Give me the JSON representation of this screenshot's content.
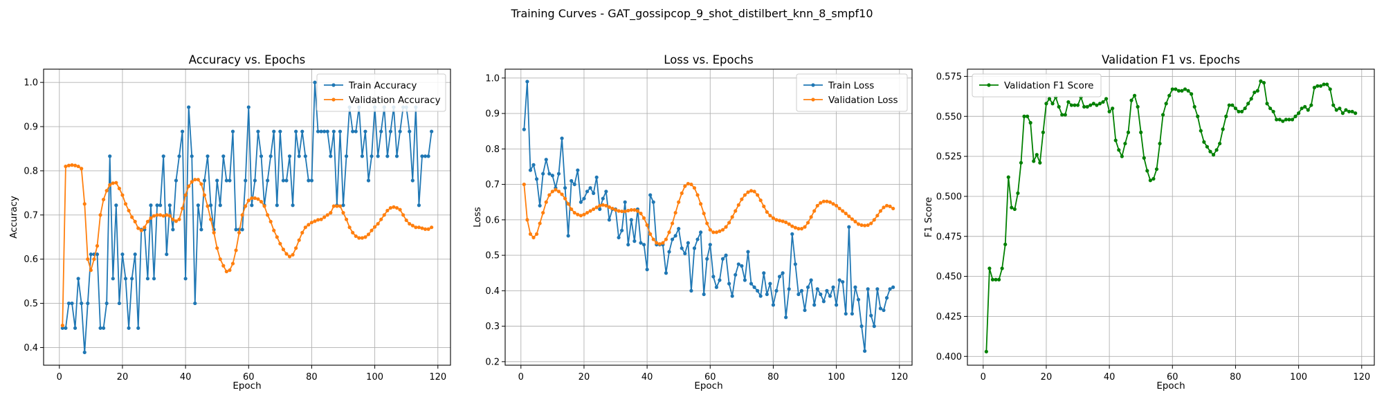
{
  "suptitle": "Training Curves - GAT_gossipcop_9_shot_distilbert_knn_8_smpf10",
  "chart_data": [
    {
      "type": "line",
      "title": "Accuracy vs. Epochs",
      "xlabel": "Epoch",
      "ylabel": "Accuracy",
      "xlim": [
        -5,
        124
      ],
      "ylim": [
        0.36,
        1.03
      ],
      "xticks": [
        0,
        20,
        40,
        60,
        80,
        100,
        120
      ],
      "yticks": [
        0.4,
        0.5,
        0.6,
        0.7,
        0.8,
        0.9,
        1.0
      ],
      "ytick_decimals": 1,
      "grid": true,
      "legend": "top-right",
      "series": [
        {
          "name": "Train Accuracy",
          "color": "#1f77b4",
          "x_start": 1,
          "values": [
            0.444,
            0.444,
            0.5,
            0.5,
            0.444,
            0.556,
            0.5,
            0.389,
            0.5,
            0.611,
            0.611,
            0.611,
            0.444,
            0.444,
            0.5,
            0.833,
            0.556,
            0.722,
            0.5,
            0.611,
            0.556,
            0.444,
            0.556,
            0.611,
            0.444,
            0.667,
            0.667,
            0.556,
            0.722,
            0.556,
            0.722,
            0.722,
            0.833,
            0.611,
            0.722,
            0.667,
            0.778,
            0.833,
            0.889,
            0.556,
            0.944,
            0.833,
            0.5,
            0.722,
            0.667,
            0.778,
            0.833,
            0.722,
            0.667,
            0.778,
            0.722,
            0.833,
            0.778,
            0.778,
            0.889,
            0.667,
            0.667,
            0.667,
            0.778,
            0.944,
            0.722,
            0.778,
            0.889,
            0.833,
            0.722,
            0.778,
            0.833,
            0.889,
            0.722,
            0.889,
            0.778,
            0.778,
            0.833,
            0.722,
            0.889,
            0.833,
            0.889,
            0.833,
            0.778,
            0.778,
            1.0,
            0.889,
            0.889,
            0.889,
            0.889,
            0.833,
            0.889,
            0.722,
            0.889,
            0.722,
            0.833,
            0.944,
            0.889,
            0.889,
            0.944,
            0.833,
            0.889,
            0.778,
            0.833,
            0.944,
            0.833,
            0.889,
            0.944,
            0.833,
            0.889,
            0.944,
            0.833,
            0.889,
            0.944,
            0.944,
            0.889,
            0.778,
            0.944,
            0.722,
            0.833,
            0.833,
            0.833,
            0.889
          ]
        },
        {
          "name": "Validation Accuracy",
          "color": "#ff7f0e",
          "x_start": 1,
          "values": [
            0.45,
            0.81,
            0.812,
            0.813,
            0.812,
            0.81,
            0.805,
            0.725,
            0.6,
            0.575,
            0.6,
            0.63,
            0.7,
            0.735,
            0.755,
            0.768,
            0.772,
            0.773,
            0.76,
            0.745,
            0.725,
            0.71,
            0.695,
            0.685,
            0.67,
            0.665,
            0.672,
            0.685,
            0.693,
            0.698,
            0.7,
            0.7,
            0.698,
            0.7,
            0.698,
            0.69,
            0.686,
            0.69,
            0.715,
            0.745,
            0.765,
            0.775,
            0.78,
            0.78,
            0.77,
            0.745,
            0.72,
            0.69,
            0.66,
            0.625,
            0.6,
            0.585,
            0.572,
            0.575,
            0.59,
            0.62,
            0.66,
            0.7,
            0.72,
            0.733,
            0.738,
            0.738,
            0.736,
            0.73,
            0.72,
            0.7,
            0.685,
            0.665,
            0.65,
            0.635,
            0.622,
            0.612,
            0.606,
            0.61,
            0.625,
            0.643,
            0.66,
            0.672,
            0.678,
            0.683,
            0.686,
            0.689,
            0.69,
            0.695,
            0.7,
            0.705,
            0.72,
            0.72,
            0.72,
            0.705,
            0.69,
            0.672,
            0.66,
            0.652,
            0.648,
            0.648,
            0.65,
            0.656,
            0.665,
            0.673,
            0.68,
            0.69,
            0.7,
            0.71,
            0.716,
            0.718,
            0.716,
            0.712,
            0.7,
            0.688,
            0.68,
            0.676,
            0.672,
            0.672,
            0.67,
            0.668,
            0.668,
            0.672
          ]
        }
      ]
    },
    {
      "type": "line",
      "title": "Loss vs. Epochs",
      "xlabel": "Epoch",
      "ylabel": "Loss",
      "xlim": [
        -5,
        124
      ],
      "ylim": [
        0.19,
        1.025
      ],
      "xticks": [
        0,
        20,
        40,
        60,
        80,
        100,
        120
      ],
      "yticks": [
        0.2,
        0.3,
        0.4,
        0.5,
        0.6,
        0.7,
        0.8,
        0.9,
        1.0
      ],
      "ytick_decimals": 1,
      "grid": true,
      "legend": "top-right",
      "series": [
        {
          "name": "Train Loss",
          "color": "#1f77b4",
          "x_start": 1,
          "values": [
            0.855,
            0.99,
            0.74,
            0.755,
            0.715,
            0.64,
            0.73,
            0.77,
            0.73,
            0.725,
            0.69,
            0.73,
            0.83,
            0.69,
            0.555,
            0.71,
            0.7,
            0.74,
            0.65,
            0.66,
            0.68,
            0.69,
            0.675,
            0.72,
            0.63,
            0.66,
            0.68,
            0.6,
            0.63,
            0.63,
            0.55,
            0.57,
            0.65,
            0.53,
            0.6,
            0.54,
            0.63,
            0.535,
            0.53,
            0.46,
            0.67,
            0.65,
            0.53,
            0.53,
            0.53,
            0.45,
            0.51,
            0.545,
            0.555,
            0.575,
            0.52,
            0.505,
            0.535,
            0.4,
            0.52,
            0.545,
            0.565,
            0.39,
            0.49,
            0.53,
            0.44,
            0.41,
            0.43,
            0.49,
            0.5,
            0.42,
            0.385,
            0.445,
            0.475,
            0.47,
            0.43,
            0.51,
            0.42,
            0.41,
            0.4,
            0.385,
            0.45,
            0.39,
            0.42,
            0.36,
            0.4,
            0.44,
            0.45,
            0.325,
            0.405,
            0.56,
            0.475,
            0.39,
            0.4,
            0.345,
            0.41,
            0.43,
            0.36,
            0.405,
            0.39,
            0.37,
            0.4,
            0.385,
            0.41,
            0.36,
            0.43,
            0.425,
            0.335,
            0.58,
            0.335,
            0.41,
            0.375,
            0.3,
            0.23,
            0.405,
            0.33,
            0.3,
            0.405,
            0.35,
            0.345,
            0.38,
            0.405,
            0.41
          ]
        },
        {
          "name": "Validation Loss",
          "color": "#ff7f0e",
          "x_start": 1,
          "values": [
            0.7,
            0.6,
            0.56,
            0.55,
            0.56,
            0.59,
            0.62,
            0.65,
            0.67,
            0.68,
            0.685,
            0.68,
            0.672,
            0.66,
            0.645,
            0.63,
            0.62,
            0.615,
            0.612,
            0.615,
            0.62,
            0.625,
            0.63,
            0.635,
            0.64,
            0.642,
            0.64,
            0.636,
            0.632,
            0.628,
            0.625,
            0.624,
            0.624,
            0.626,
            0.628,
            0.628,
            0.625,
            0.618,
            0.605,
            0.585,
            0.56,
            0.545,
            0.535,
            0.532,
            0.535,
            0.545,
            0.565,
            0.59,
            0.62,
            0.65,
            0.675,
            0.695,
            0.702,
            0.7,
            0.69,
            0.67,
            0.645,
            0.618,
            0.59,
            0.572,
            0.565,
            0.565,
            0.568,
            0.572,
            0.58,
            0.592,
            0.608,
            0.625,
            0.642,
            0.658,
            0.67,
            0.678,
            0.682,
            0.68,
            0.67,
            0.655,
            0.638,
            0.622,
            0.612,
            0.605,
            0.6,
            0.598,
            0.596,
            0.593,
            0.588,
            0.582,
            0.578,
            0.575,
            0.575,
            0.58,
            0.592,
            0.608,
            0.625,
            0.64,
            0.648,
            0.652,
            0.652,
            0.65,
            0.645,
            0.64,
            0.632,
            0.625,
            0.618,
            0.61,
            0.602,
            0.595,
            0.588,
            0.585,
            0.584,
            0.585,
            0.59,
            0.6,
            0.612,
            0.625,
            0.635,
            0.64,
            0.638,
            0.632
          ]
        }
      ]
    },
    {
      "type": "line",
      "title": "Validation F1 vs. Epochs",
      "xlabel": "Epoch",
      "ylabel": "F1 Score",
      "xlim": [
        -5,
        124
      ],
      "ylim": [
        0.3945,
        0.5795
      ],
      "xticks": [
        0,
        20,
        40,
        60,
        80,
        100,
        120
      ],
      "yticks": [
        0.4,
        0.425,
        0.45,
        0.475,
        0.5,
        0.525,
        0.55,
        0.575
      ],
      "ytick_decimals": 3,
      "grid": true,
      "legend": "top-left",
      "series": [
        {
          "name": "Validation F1 Score",
          "color": "#008000",
          "x_start": 1,
          "values": [
            0.403,
            0.455,
            0.448,
            0.448,
            0.448,
            0.455,
            0.47,
            0.512,
            0.493,
            0.492,
            0.502,
            0.521,
            0.55,
            0.55,
            0.546,
            0.522,
            0.526,
            0.521,
            0.54,
            0.558,
            0.561,
            0.558,
            0.562,
            0.556,
            0.551,
            0.551,
            0.559,
            0.557,
            0.557,
            0.557,
            0.562,
            0.556,
            0.556,
            0.557,
            0.558,
            0.557,
            0.558,
            0.559,
            0.561,
            0.553,
            0.555,
            0.535,
            0.529,
            0.525,
            0.533,
            0.54,
            0.56,
            0.563,
            0.556,
            0.54,
            0.524,
            0.516,
            0.51,
            0.511,
            0.517,
            0.533,
            0.551,
            0.558,
            0.563,
            0.567,
            0.567,
            0.566,
            0.566,
            0.567,
            0.566,
            0.564,
            0.556,
            0.55,
            0.541,
            0.534,
            0.531,
            0.528,
            0.526,
            0.529,
            0.533,
            0.542,
            0.55,
            0.557,
            0.557,
            0.555,
            0.553,
            0.553,
            0.555,
            0.558,
            0.561,
            0.565,
            0.566,
            0.572,
            0.571,
            0.558,
            0.555,
            0.553,
            0.548,
            0.548,
            0.547,
            0.548,
            0.548,
            0.548,
            0.55,
            0.552,
            0.555,
            0.556,
            0.554,
            0.557,
            0.568,
            0.569,
            0.569,
            0.57,
            0.57,
            0.567,
            0.557,
            0.554,
            0.555,
            0.552,
            0.554,
            0.553,
            0.553,
            0.552
          ]
        }
      ]
    }
  ]
}
